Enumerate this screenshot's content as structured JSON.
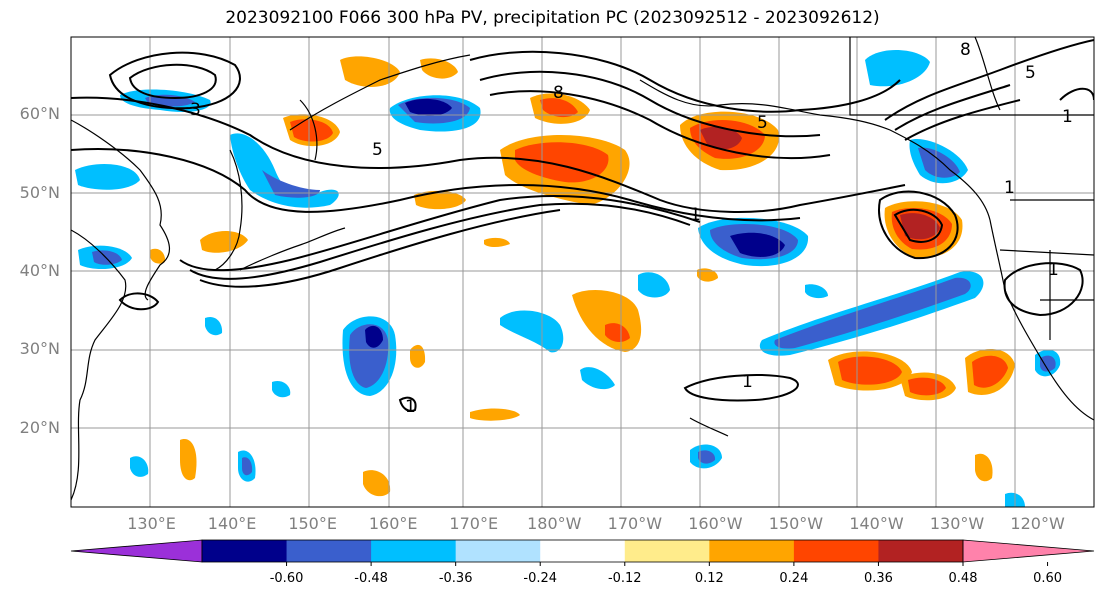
{
  "title": "2023092100 F066 300 hPa PV, precipitation PC (2023092512 - 2023092612)",
  "map": {
    "lat_labels": [
      "60°N",
      "50°N",
      "40°N",
      "30°N",
      "20°N"
    ],
    "lat_values": [
      60,
      50,
      40,
      30,
      20
    ],
    "lon_labels": [
      "130°E",
      "140°E",
      "150°E",
      "160°E",
      "170°E",
      "180°W",
      "170°W",
      "160°W",
      "150°W",
      "140°W",
      "130°W",
      "120°W"
    ],
    "lon_values": [
      130,
      140,
      150,
      160,
      170,
      180,
      190,
      200,
      210,
      220,
      230,
      240
    ],
    "lon_range": [
      120,
      247
    ],
    "lat_range": [
      10,
      70
    ],
    "contour_labels": [
      "1",
      "1",
      "1",
      "1",
      "1",
      "1",
      "3",
      "5",
      "5",
      "5",
      "8",
      "8"
    ]
  },
  "colorbar": {
    "ticks": [
      "-0.60",
      "-0.48",
      "-0.36",
      "-0.24",
      "-0.12",
      "0.12",
      "0.24",
      "0.36",
      "0.48",
      "0.60"
    ],
    "colors": [
      "#9b30d9",
      "#00008b",
      "#3a5fcd",
      "#00bfff",
      "#b0e2ff",
      "#ffffff",
      "#ffec8b",
      "#ffa500",
      "#ff4500",
      "#b22222",
      "#ff82ab"
    ]
  }
}
